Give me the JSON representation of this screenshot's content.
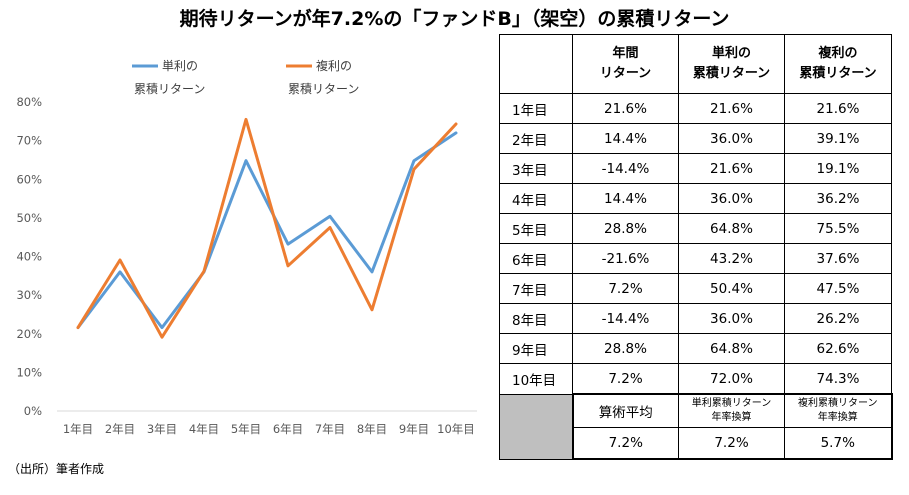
{
  "title": "期待リターンが年7.2%の「ファンドB」（架空）の累積リターン",
  "source": "（出所）筆者作成",
  "chart_data": {
    "type": "line",
    "categories": [
      "1年目",
      "2年目",
      "3年目",
      "4年目",
      "5年目",
      "6年目",
      "7年目",
      "8年目",
      "9年目",
      "10年目"
    ],
    "ylim": [
      0,
      80
    ],
    "yticks": [
      "0%",
      "10%",
      "20%",
      "30%",
      "40%",
      "50%",
      "60%",
      "70%",
      "80%"
    ],
    "grid": false,
    "legend_position": "top",
    "series": [
      {
        "name_line1": "単利の",
        "name_line2": "累積リターン",
        "color": "#5b9bd5",
        "values": [
          21.6,
          36.0,
          21.6,
          36.0,
          64.8,
          43.2,
          50.4,
          36.0,
          64.8,
          72.0
        ]
      },
      {
        "name_line1": "複利の",
        "name_line2": "累積リターン",
        "color": "#ed7d31",
        "values": [
          21.6,
          39.1,
          19.1,
          36.2,
          75.5,
          37.6,
          47.5,
          26.2,
          62.6,
          74.3
        ]
      }
    ]
  },
  "table": {
    "headers": [
      {
        "line1": "年間",
        "line2": "リターン"
      },
      {
        "line1": "単利の",
        "line2": "累積リターン"
      },
      {
        "line1": "複利の",
        "line2": "累積リターン"
      }
    ],
    "rows": [
      {
        "label": "1年目",
        "annual": "21.6%",
        "simple": "21.6%",
        "compound": "21.6%"
      },
      {
        "label": "2年目",
        "annual": "14.4%",
        "simple": "36.0%",
        "compound": "39.1%"
      },
      {
        "label": "3年目",
        "annual": "-14.4%",
        "simple": "21.6%",
        "compound": "19.1%"
      },
      {
        "label": "4年目",
        "annual": "14.4%",
        "simple": "36.0%",
        "compound": "36.2%"
      },
      {
        "label": "5年目",
        "annual": "28.8%",
        "simple": "64.8%",
        "compound": "75.5%"
      },
      {
        "label": "6年目",
        "annual": "-21.6%",
        "simple": "43.2%",
        "compound": "37.6%"
      },
      {
        "label": "7年目",
        "annual": "7.2%",
        "simple": "50.4%",
        "compound": "47.5%"
      },
      {
        "label": "8年目",
        "annual": "-14.4%",
        "simple": "36.0%",
        "compound": "26.2%"
      },
      {
        "label": "9年目",
        "annual": "28.8%",
        "simple": "64.8%",
        "compound": "62.6%"
      },
      {
        "label": "10年目",
        "annual": "7.2%",
        "simple": "72.0%",
        "compound": "74.3%"
      }
    ],
    "avg_headers": [
      {
        "line1": "算術平均",
        "line2": ""
      },
      {
        "line1": "単利累積リターン",
        "line2": "年率換算"
      },
      {
        "line1": "複利累積リターン",
        "line2": "年率換算"
      }
    ],
    "avg_values": [
      "7.2%",
      "7.2%",
      "5.7%"
    ]
  }
}
